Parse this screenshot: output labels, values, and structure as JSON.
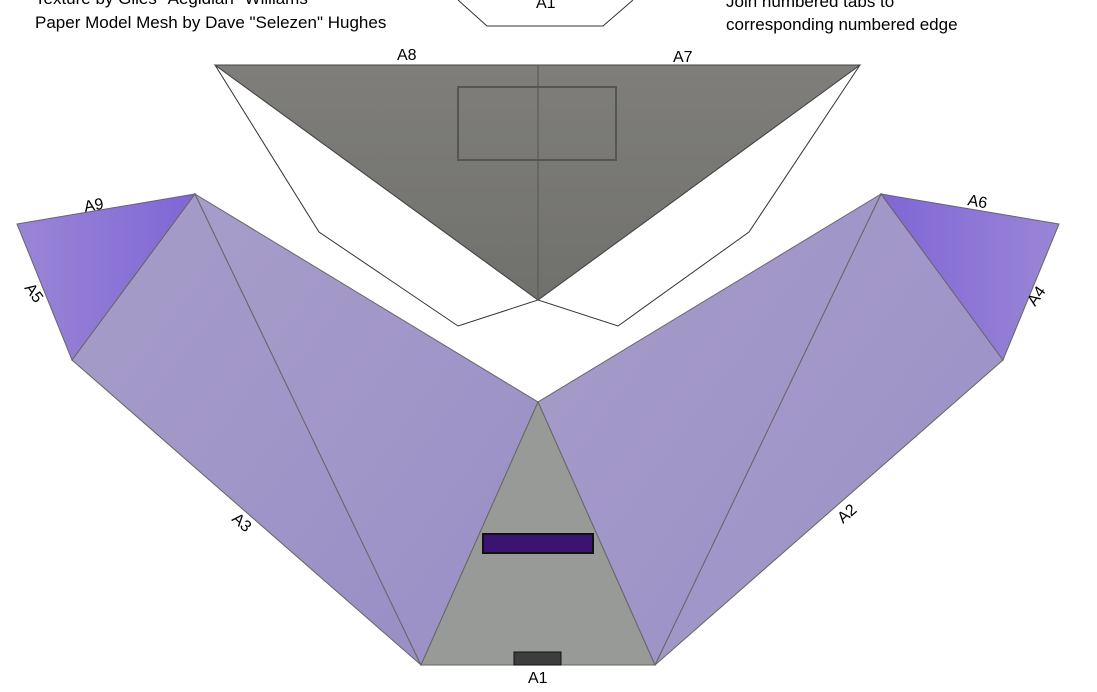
{
  "credits": {
    "texture": "Texture by Giles \"Aegidian\" Williams",
    "mesh": "Paper Model Mesh by Dave \"Selezen\" Hughes"
  },
  "instructions": {
    "line1": "Join numbered tabs to",
    "line2": "corresponding numbered edge"
  },
  "tabs": {
    "a1_top": "A1",
    "a1_bottom": "A1",
    "a2": "A2",
    "a3": "A3",
    "a4": "A4",
    "a5": "A5",
    "a6": "A6",
    "a7": "A7",
    "a8": "A8",
    "a9": "A9"
  },
  "colors": {
    "hull_lavender": "#a398c8",
    "fin_purple": "#8e76d8",
    "grey_panel": "#7c7b78",
    "grey_center": "#989a97",
    "slot_dark": "#3a1470"
  }
}
